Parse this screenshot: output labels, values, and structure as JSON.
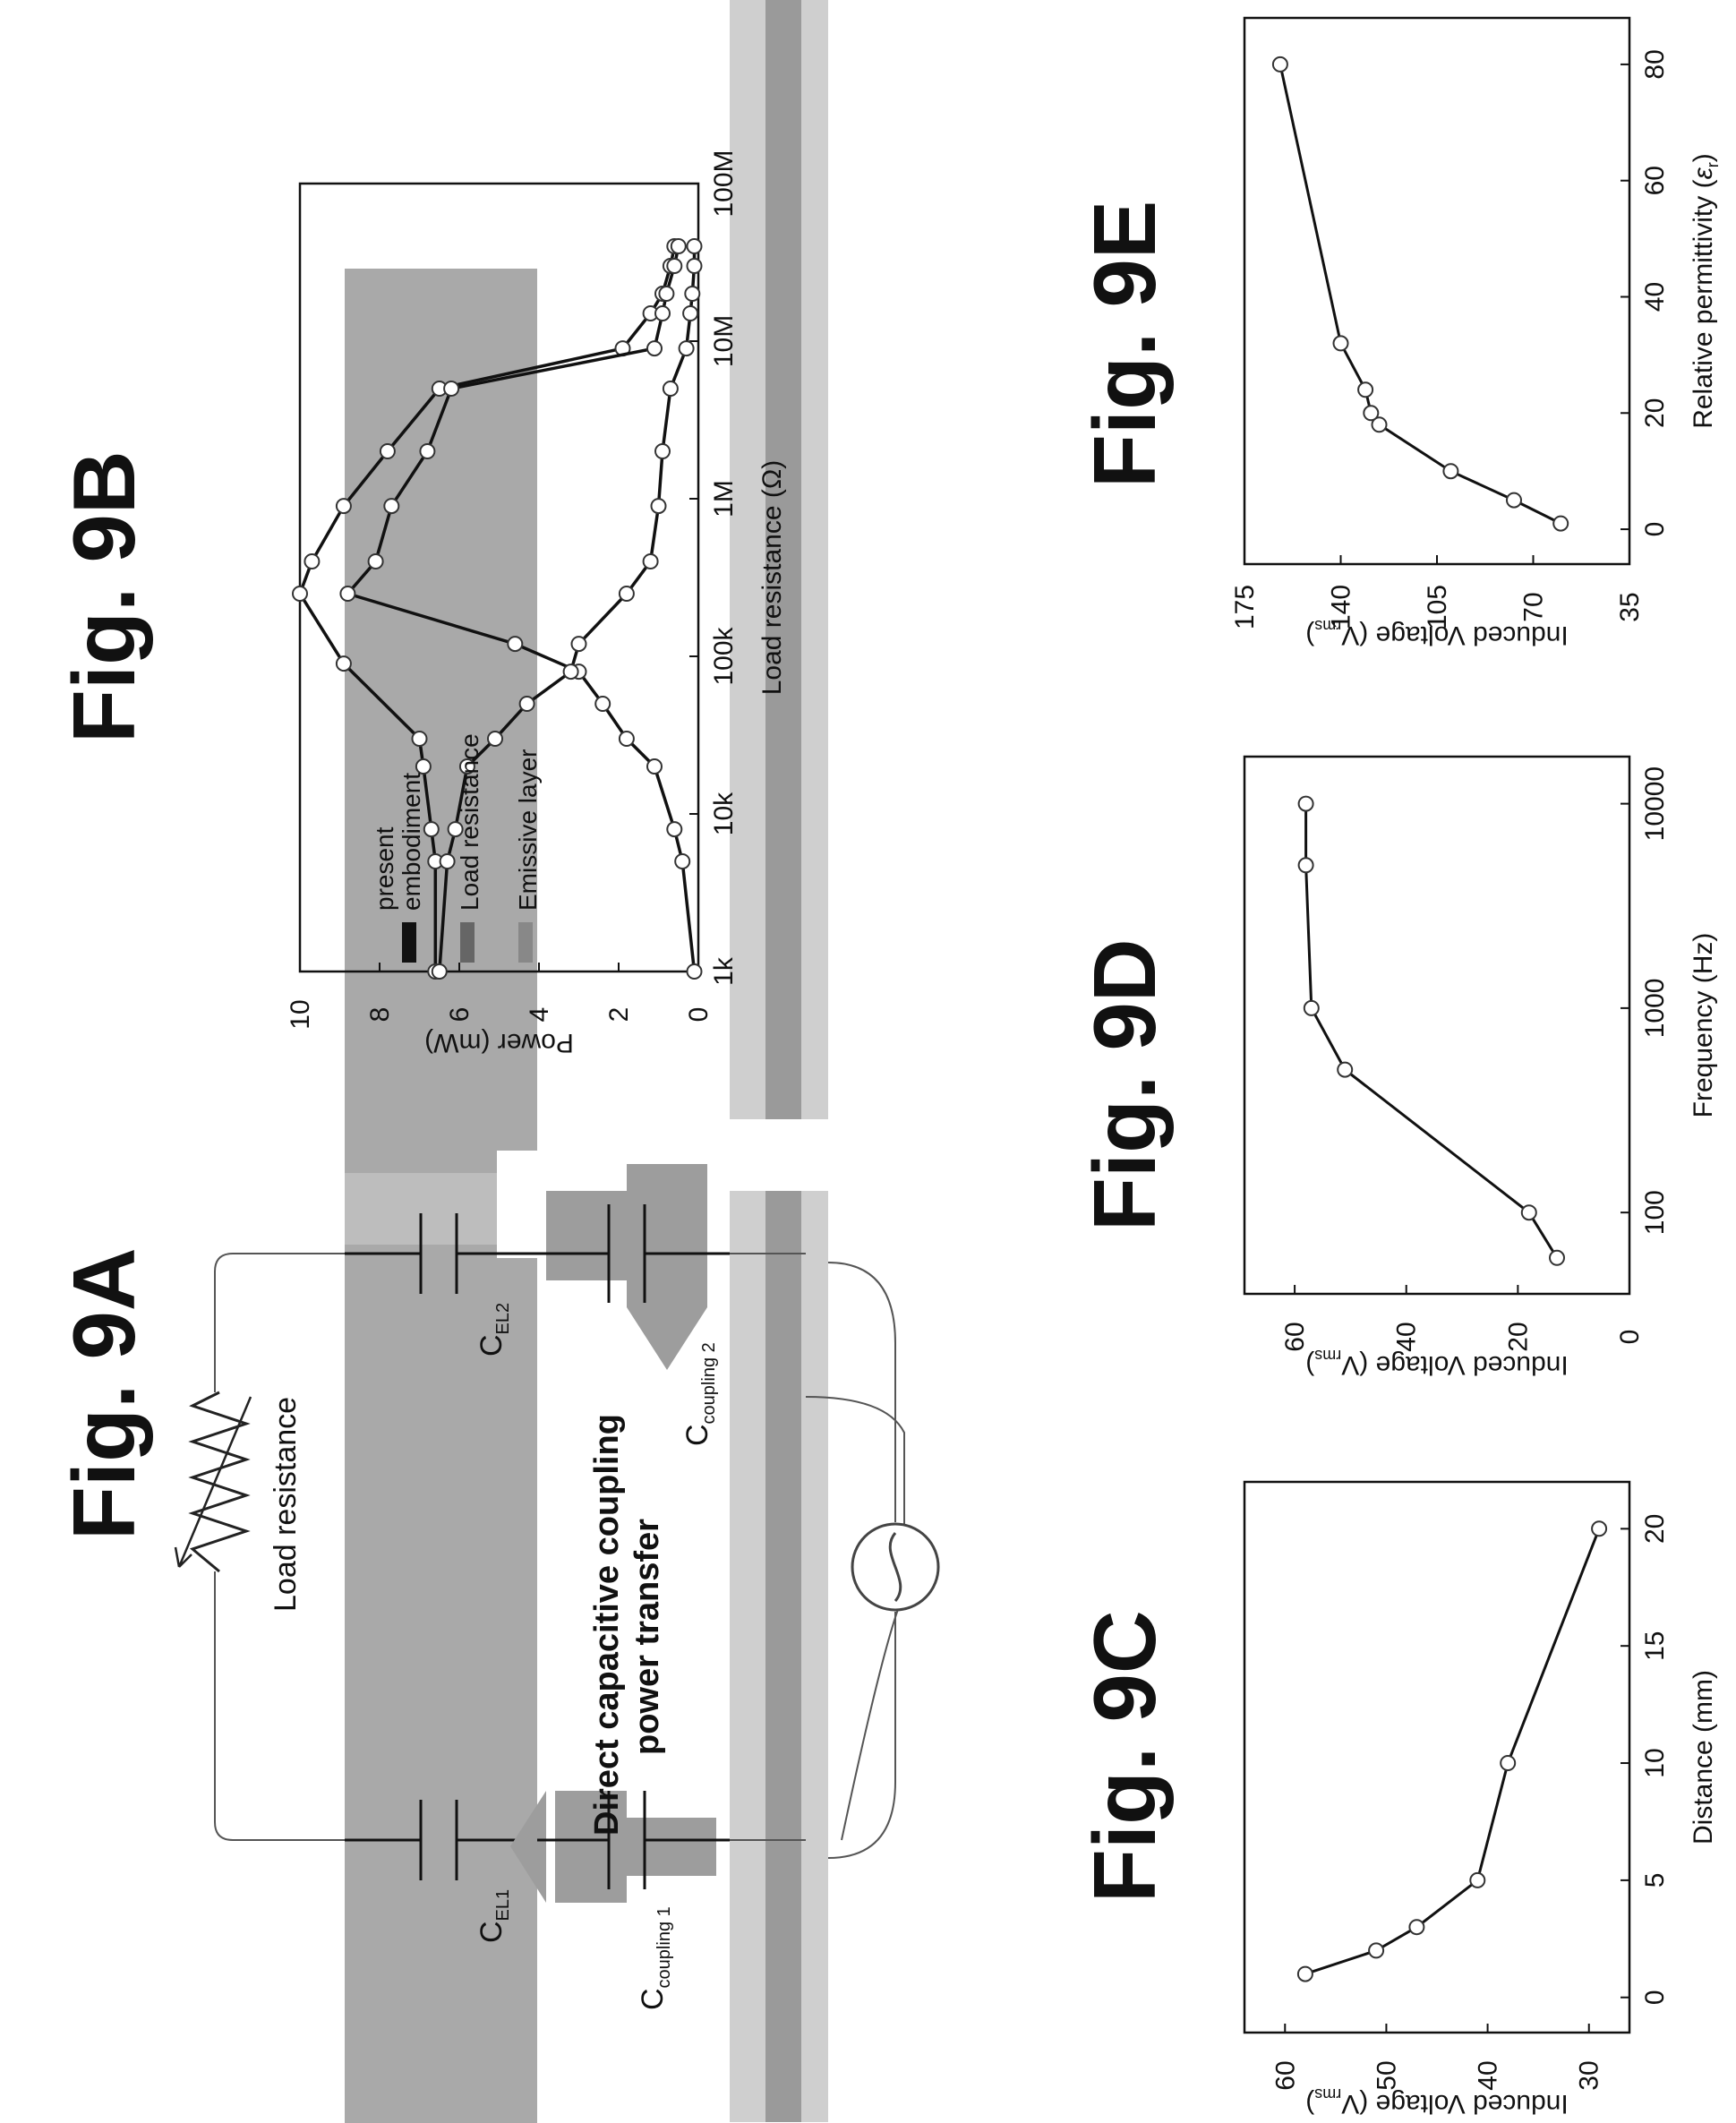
{
  "figures": {
    "a": {
      "label": "Fig. 9A",
      "load_label": "Load resistance",
      "transfer_line1": "Direct capacitive coupling",
      "transfer_line2": "power transfer",
      "cel1": "C",
      "cel1_sub": "EL1",
      "cel2": "C",
      "cel2_sub": "EL2",
      "cc1": "C",
      "cc1_sub": "coupling 1",
      "cc2": "C",
      "cc2_sub": "coupling 2"
    },
    "b": {
      "label": "Fig. 9B"
    },
    "c": {
      "label": "Fig. 9C"
    },
    "d": {
      "label": "Fig. 9D"
    },
    "e": {
      "label": "Fig. 9E"
    }
  },
  "chart_data": [
    {
      "id": "9B",
      "type": "line",
      "xlabel": "Load resistance (Ω)",
      "ylabel": "Power (mW)",
      "xscale": "log",
      "xlim": [
        1000,
        100000000
      ],
      "ylim": [
        0,
        10
      ],
      "xticks": [
        1000,
        10000,
        100000,
        1000000,
        10000000,
        100000000
      ],
      "xtick_labels": [
        "1k",
        "10k",
        "100k",
        "1M",
        "10M",
        "100M"
      ],
      "yticks": [
        0,
        2,
        4,
        6,
        8,
        10
      ],
      "ytick_labels": [
        "0",
        "2",
        "4",
        "6",
        "8",
        "10"
      ],
      "legend": {
        "position": "top-left",
        "entries": [
          "present embodiment",
          "Load resistance",
          "Emissive layer"
        ],
        "entries_line1": [
          "present",
          "",
          ""
        ],
        "entries_line2": [
          "embodiment",
          "Load resistance",
          "Emissive layer"
        ]
      },
      "series": [
        {
          "name": "present embodiment",
          "x": [
            1000,
            5000,
            8000,
            20000,
            30000,
            90000,
            250000,
            400000,
            900000,
            2000000,
            5000000,
            9000000,
            15000000,
            20000000,
            30000000,
            40000000
          ],
          "y": [
            6.6,
            6.6,
            6.7,
            6.9,
            7.0,
            8.9,
            10.0,
            9.7,
            8.9,
            7.8,
            6.5,
            1.9,
            1.2,
            0.9,
            0.7,
            0.6
          ]
        },
        {
          "name": "Load resistance",
          "x": [
            1000,
            5000,
            8000,
            20000,
            30000,
            50000,
            80000,
            120000,
            250000,
            400000,
            900000,
            2000000,
            5000000,
            9000000,
            15000000,
            20000000,
            30000000,
            40000000
          ],
          "y": [
            0.1,
            0.4,
            0.6,
            1.1,
            1.8,
            2.4,
            3.0,
            4.6,
            8.8,
            8.1,
            7.7,
            6.8,
            6.2,
            1.1,
            0.9,
            0.8,
            0.6,
            0.5
          ]
        },
        {
          "name": "Emissive layer",
          "x": [
            1000,
            5000,
            8000,
            20000,
            30000,
            50000,
            80000,
            120000,
            250000,
            400000,
            900000,
            2000000,
            5000000,
            9000000,
            15000000,
            20000000,
            30000000,
            40000000
          ],
          "y": [
            6.5,
            6.3,
            6.1,
            5.8,
            5.1,
            4.3,
            3.2,
            3.0,
            1.8,
            1.2,
            1.0,
            0.9,
            0.7,
            0.3,
            0.2,
            0.15,
            0.1,
            0.1
          ]
        }
      ]
    },
    {
      "id": "9C",
      "type": "line",
      "xlabel": "Distance (mm)",
      "ylabel": "Induced Voltage  (V",
      "ylabel_sub": "rms",
      "ylabel_end": ")",
      "xlim": [
        -1.5,
        22
      ],
      "ylim": [
        26,
        64
      ],
      "xticks": [
        0,
        5,
        10,
        15,
        20
      ],
      "xtick_labels": [
        "0",
        "5",
        "10",
        "15",
        "20"
      ],
      "yticks": [
        30,
        40,
        50,
        60
      ],
      "ytick_labels": [
        "30",
        "40",
        "50",
        "60"
      ],
      "series": [
        {
          "x": [
            1,
            2,
            3,
            5,
            10,
            20
          ],
          "y": [
            58,
            51,
            47,
            41,
            38,
            29
          ]
        }
      ]
    },
    {
      "id": "9D",
      "type": "line",
      "xlabel": "Frequency (Hz)",
      "ylabel": "Induced Voltage  (V",
      "ylabel_sub": "rms",
      "ylabel_end": ")",
      "xscale": "log",
      "xlim": [
        40,
        17000
      ],
      "ylim": [
        0,
        69
      ],
      "xticks": [
        100,
        1000,
        10000
      ],
      "xtick_labels": [
        "100",
        "1000",
        "10000"
      ],
      "yticks": [
        0,
        20,
        40,
        60
      ],
      "ytick_labels": [
        "0",
        "20",
        "40",
        "60"
      ],
      "series": [
        {
          "x": [
            60,
            100,
            500,
            1000,
            5000,
            10000
          ],
          "y": [
            13,
            18,
            51,
            57,
            58,
            58
          ]
        }
      ]
    },
    {
      "id": "9E",
      "type": "line",
      "xlabel": "Relative permittivity (",
      "xlabel_sym": "ε",
      "xlabel_sub": "r",
      "xlabel_end": ")",
      "ylabel": "Induced Voltage  (V",
      "ylabel_sub": "rms",
      "ylabel_end": ")",
      "xlim": [
        -6,
        88
      ],
      "ylim": [
        35,
        175
      ],
      "xticks": [
        0,
        20,
        40,
        60,
        80
      ],
      "xtick_labels": [
        "0",
        "20",
        "40",
        "60",
        "80"
      ],
      "yticks": [
        35,
        70,
        105,
        140,
        175
      ],
      "ytick_labels": [
        "35",
        "70",
        "105",
        "140",
        "175"
      ],
      "series": [
        {
          "x": [
            1,
            5,
            10,
            18,
            20,
            24,
            32,
            80
          ],
          "y": [
            60,
            77,
            100,
            126,
            129,
            131,
            140,
            162
          ]
        }
      ]
    }
  ]
}
